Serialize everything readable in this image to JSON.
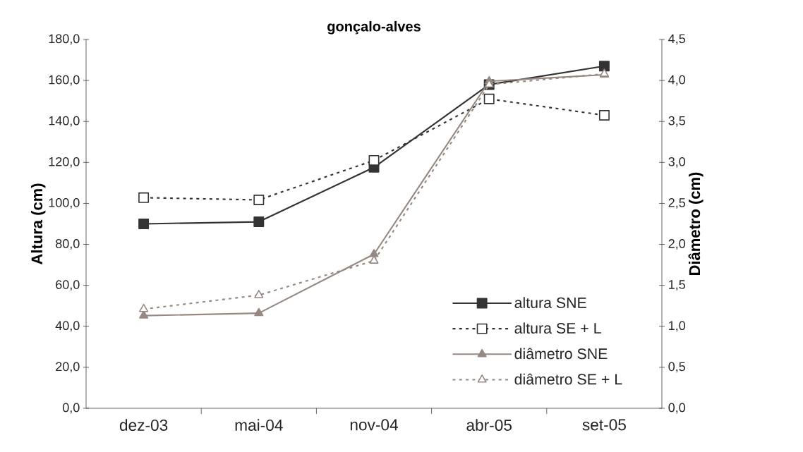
{
  "chart_data": {
    "type": "line",
    "title": "gonçalo-alves",
    "ylabel": "Altura (cm)",
    "y2label": "Diâmetro (cm)",
    "categories": [
      "dez-03",
      "mai-04",
      "nov-04",
      "abr-05",
      "set-05"
    ],
    "series": [
      {
        "name": "altura SNE",
        "color": "#333333",
        "marker": "square",
        "line_style": "solid",
        "values": [
          90.0,
          91.0,
          117.6,
          158.0,
          167.0
        ]
      },
      {
        "name": "altura SE + L",
        "color": "#333333",
        "marker": "square",
        "line_style": "dotted",
        "values": [
          102.8,
          101.7,
          121.0,
          151.0,
          143.0
        ]
      },
      {
        "name": "diâmetro SNE",
        "color": "#968883",
        "marker": "triangle",
        "line_style": "solid",
        "axis": "y2",
        "values": [
          1.13,
          1.16,
          1.88,
          3.99,
          4.07
        ]
      },
      {
        "name": "diâmetro SE + L",
        "color": "#968883",
        "marker": "triangle",
        "line_style": "dotted",
        "axis": "y2",
        "values": [
          1.21,
          1.38,
          1.8,
          3.95,
          4.08
        ]
      }
    ],
    "ylim": [
      0,
      180
    ],
    "yticks": [
      {
        "value": 0,
        "label": "0,0"
      },
      {
        "value": 20,
        "label": "20,0"
      },
      {
        "value": 40,
        "label": "40,0"
      },
      {
        "value": 60,
        "label": "60,0"
      },
      {
        "value": 80,
        "label": "80,0"
      },
      {
        "value": 100,
        "label": "100,0"
      },
      {
        "value": 120,
        "label": "120,0"
      },
      {
        "value": 140,
        "label": "140,0"
      },
      {
        "value": 160,
        "label": "160,0"
      },
      {
        "value": 180,
        "label": "180,0"
      }
    ],
    "y2lim": [
      0,
      4.5
    ],
    "y2ticks": [
      {
        "value": 0,
        "label": "0,0"
      },
      {
        "value": 0.5,
        "label": "0,5"
      },
      {
        "value": 1,
        "label": "1,0"
      },
      {
        "value": 1.5,
        "label": "1,5"
      },
      {
        "value": 2,
        "label": "2,0"
      },
      {
        "value": 2.5,
        "label": "2,5"
      },
      {
        "value": 3,
        "label": "3,0"
      },
      {
        "value": 3.5,
        "label": "3,5"
      },
      {
        "value": 4,
        "label": "4,0"
      },
      {
        "value": 4.5,
        "label": "4,5"
      }
    ],
    "grid": false,
    "legend": "bottom right"
  }
}
